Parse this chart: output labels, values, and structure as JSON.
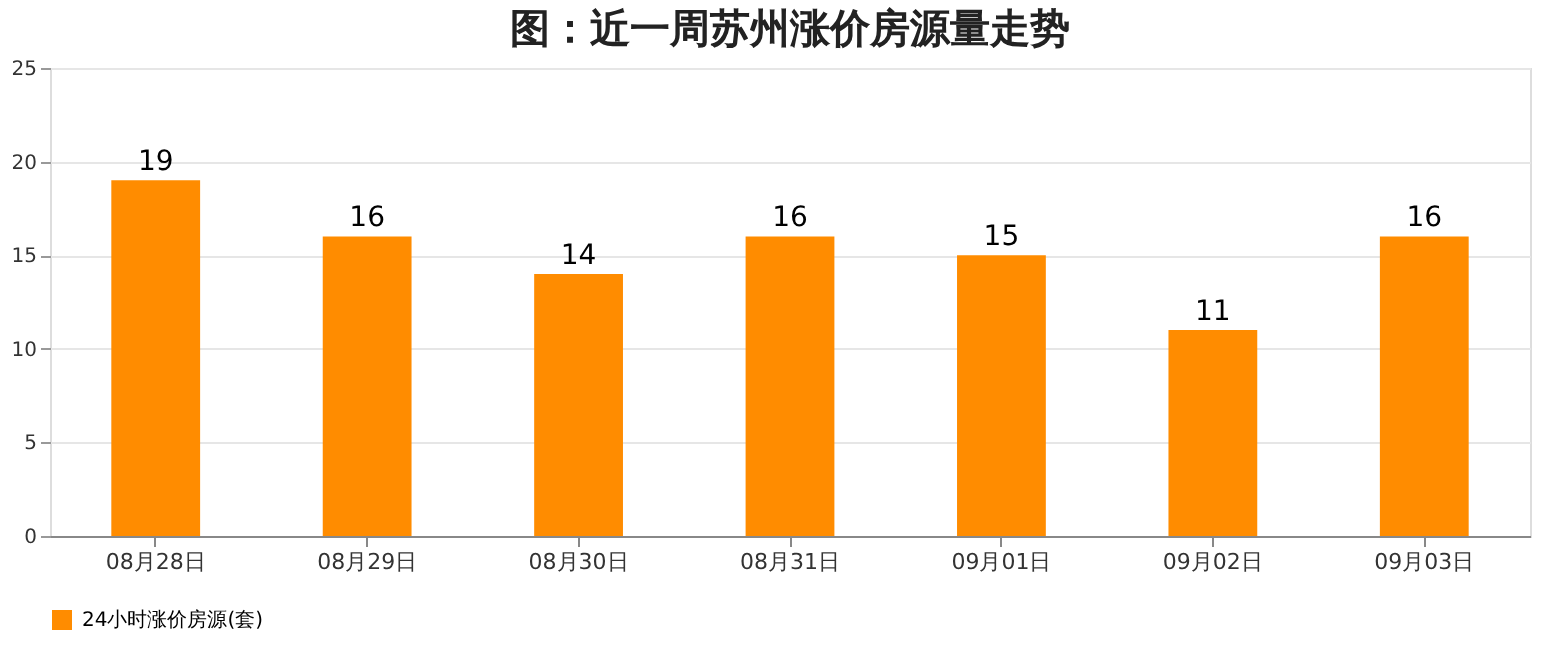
{
  "chart_data": {
    "type": "bar",
    "title": "图：近一周苏州涨价房源量走势",
    "categories": [
      "08月28日",
      "08月29日",
      "08月30日",
      "08月31日",
      "09月01日",
      "09月02日",
      "09月03日"
    ],
    "series": [
      {
        "name": "24小时涨价房源(套)",
        "color": "#ff8c00",
        "values": [
          19,
          16,
          14,
          16,
          15,
          11,
          16
        ]
      }
    ],
    "ylim": [
      0,
      25
    ],
    "yticks": [
      0,
      5,
      10,
      15,
      20,
      25
    ],
    "grid": "y",
    "legend": "bottom",
    "data_labels": true
  }
}
